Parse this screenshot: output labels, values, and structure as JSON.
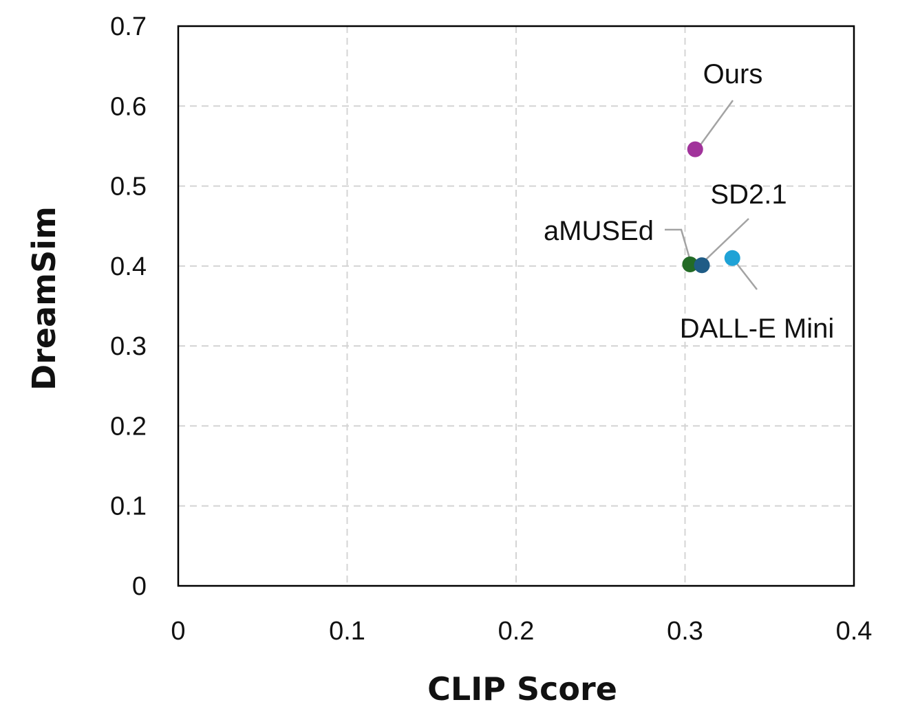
{
  "chart_data": {
    "type": "scatter",
    "xlabel": "CLIP Score",
    "ylabel": "DreamSim",
    "xlim": [
      0,
      0.4
    ],
    "ylim": [
      0,
      0.7
    ],
    "xticks": [
      "0",
      "0.1",
      "0.2",
      "0.3",
      "0.4"
    ],
    "yticks": [
      "0",
      "0.1",
      "0.2",
      "0.3",
      "0.4",
      "0.5",
      "0.6",
      "0.7"
    ],
    "grid": true,
    "points": [
      {
        "label": "Ours",
        "x": 0.306,
        "y": 0.546,
        "color": "#a1339b"
      },
      {
        "label": "aMUSEd",
        "x": 0.303,
        "y": 0.402,
        "color": "#236b26"
      },
      {
        "label": "SD2.1",
        "x": 0.31,
        "y": 0.401,
        "color": "#1f5c86"
      },
      {
        "label": "DALL-E Mini",
        "x": 0.328,
        "y": 0.41,
        "color": "#1fa2d6"
      }
    ]
  }
}
